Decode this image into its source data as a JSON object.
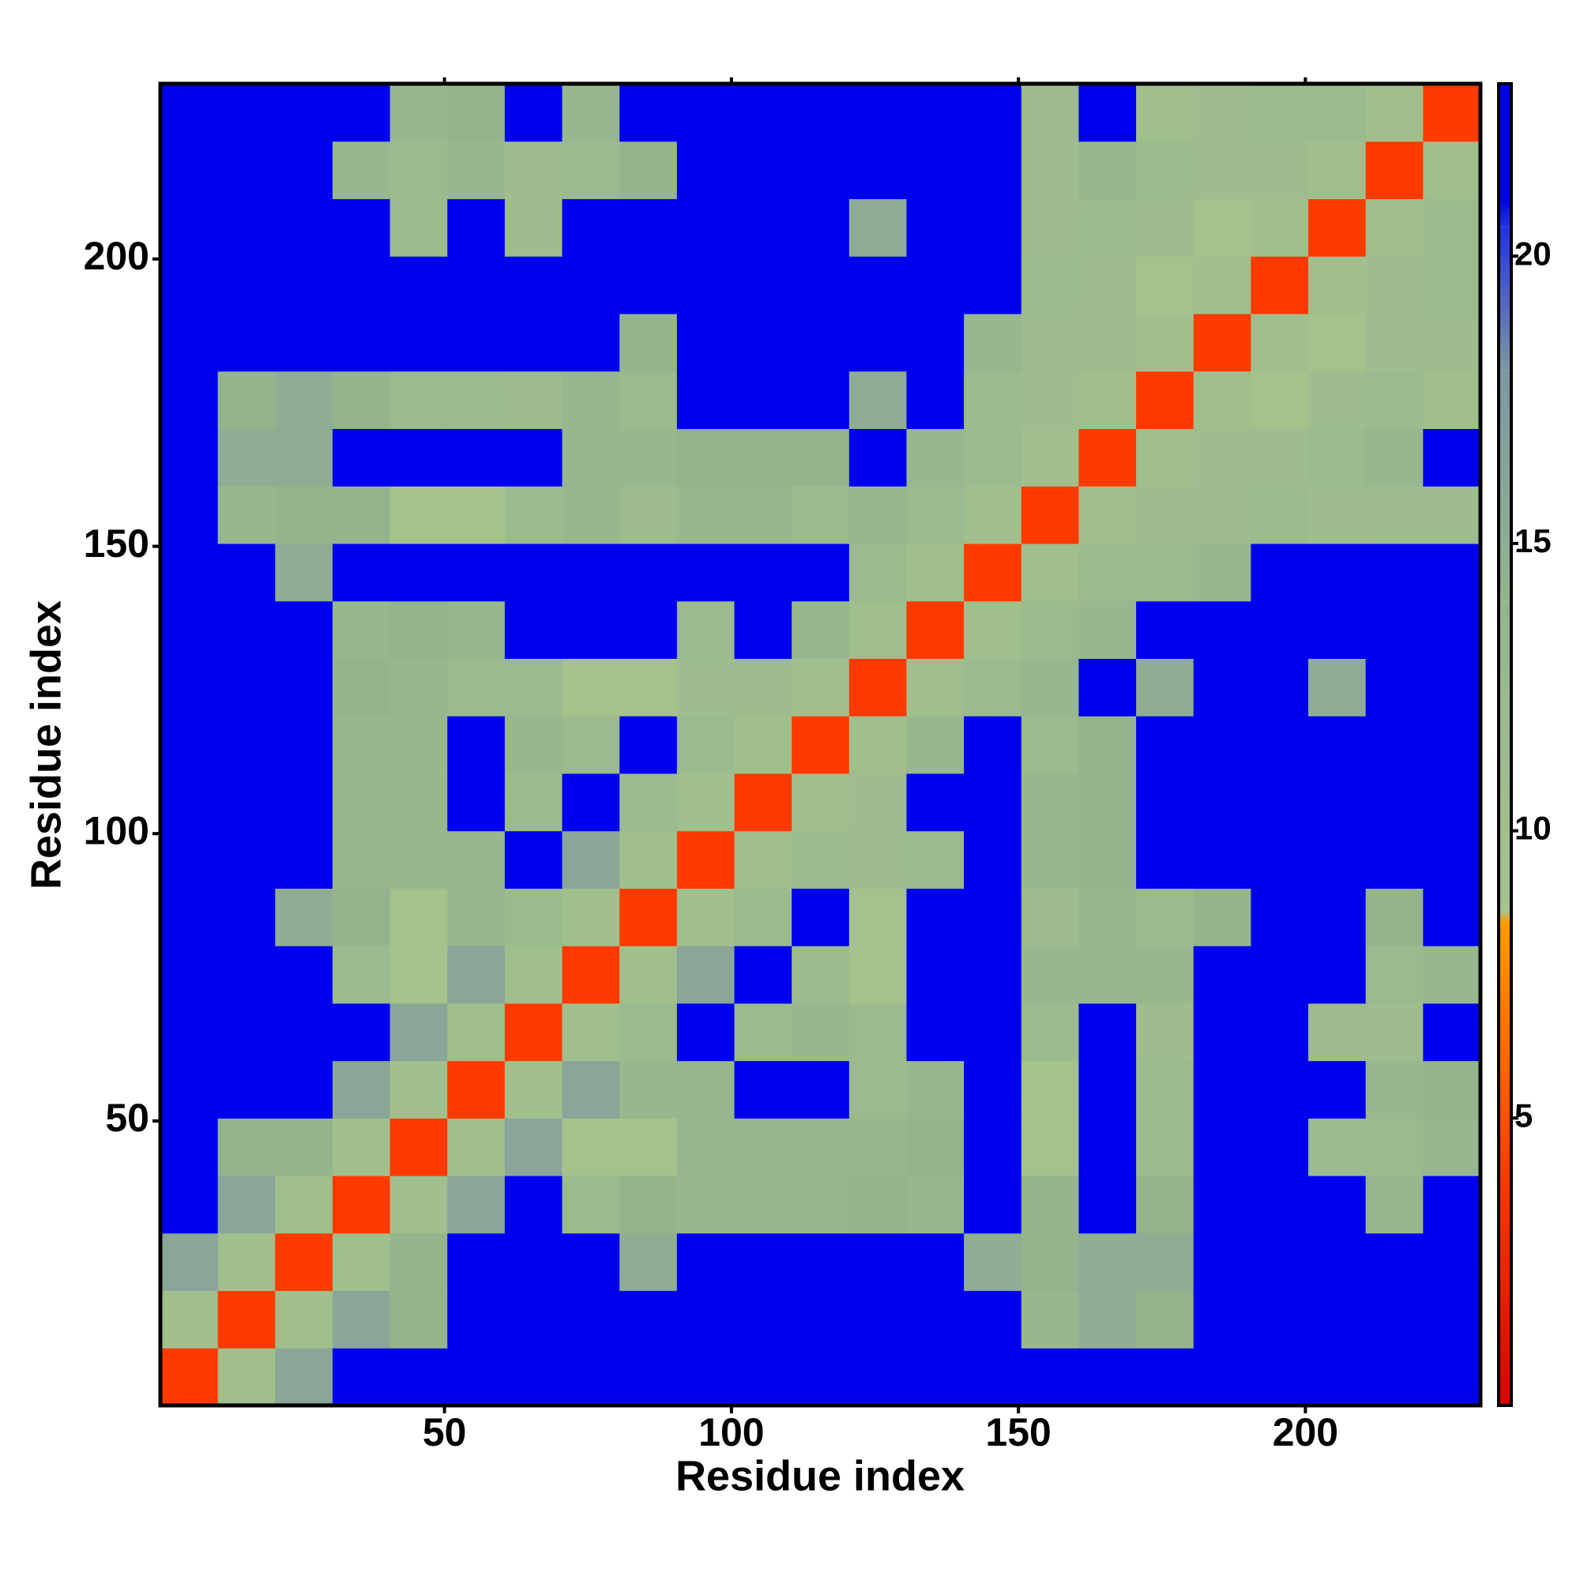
{
  "chart_data": {
    "type": "heatmap",
    "x_label": "Residue index",
    "y_label": "Residue index",
    "xlim": [
      0.5,
      230.5
    ],
    "ylim": [
      0.5,
      230.5
    ],
    "xticks": [
      50,
      100,
      150,
      200
    ],
    "yticks": [
      50,
      100,
      150,
      200
    ],
    "zlim": [
      0,
      23
    ],
    "zticks": [
      5,
      10,
      15,
      20
    ],
    "colorscale": [
      [
        0,
        "#dd0000"
      ],
      [
        4,
        "#ff3a00"
      ],
      [
        8.4,
        "#ff9a00"
      ],
      [
        8.6,
        "#a6c38c"
      ],
      [
        14,
        "#94b48e"
      ],
      [
        18,
        "#7d98a2"
      ],
      [
        20.5,
        "#2232e0"
      ],
      [
        21,
        "#0000f0"
      ],
      [
        23,
        "#0000f0"
      ]
    ],
    "x": [
      5.5,
      15.5,
      25.5,
      35.5,
      45.5,
      55.5,
      65.5,
      75.5,
      85.5,
      95.5,
      105.5,
      115.5,
      125.5,
      135.5,
      145.5,
      155.5,
      165.5,
      175.5,
      185.5,
      195.5,
      205.5,
      215.5,
      225.5
    ],
    "y": [
      5.5,
      15.5,
      25.5,
      35.5,
      45.5,
      55.5,
      65.5,
      75.5,
      85.5,
      95.5,
      105.5,
      115.5,
      125.5,
      135.5,
      145.5,
      155.5,
      165.5,
      175.5,
      185.5,
      195.5,
      205.5,
      215.5,
      225.5
    ],
    "z": [
      [
        4,
        10,
        16,
        21,
        21,
        21,
        21,
        21,
        21,
        21,
        21,
        21,
        21,
        21,
        21,
        21,
        21,
        21,
        21,
        21,
        21,
        21,
        21
      ],
      [
        10,
        4,
        10,
        16,
        14,
        21,
        21,
        21,
        21,
        21,
        21,
        21,
        21,
        21,
        21,
        13,
        15,
        14,
        21,
        21,
        21,
        21,
        21
      ],
      [
        16,
        10,
        4,
        10,
        14,
        21,
        21,
        21,
        15,
        21,
        21,
        21,
        21,
        21,
        15,
        14,
        15,
        15,
        21,
        21,
        21,
        21,
        21
      ],
      [
        21,
        16,
        10,
        4,
        10,
        16,
        21,
        12,
        14,
        13,
        13,
        13,
        14,
        13,
        21,
        14,
        21,
        14,
        21,
        21,
        21,
        13,
        21
      ],
      [
        21,
        14,
        14,
        10,
        4,
        10,
        16,
        9,
        9,
        13,
        13,
        13,
        13,
        14,
        21,
        9,
        21,
        12,
        21,
        21,
        12,
        12,
        13
      ],
      [
        21,
        21,
        21,
        16,
        10,
        4,
        10,
        16,
        13,
        13,
        21,
        21,
        12,
        13,
        21,
        9,
        21,
        12,
        21,
        21,
        21,
        13,
        14
      ],
      [
        21,
        21,
        21,
        21,
        16,
        10,
        4,
        10,
        12,
        21,
        12,
        13,
        12,
        21,
        21,
        12,
        21,
        11,
        21,
        21,
        11,
        11,
        21
      ],
      [
        21,
        21,
        21,
        12,
        9,
        16,
        10,
        4,
        10,
        16,
        21,
        12,
        9,
        21,
        21,
        13,
        13,
        13,
        21,
        21,
        21,
        12,
        13
      ],
      [
        21,
        21,
        15,
        14,
        9,
        13,
        12,
        10,
        4,
        10,
        12,
        21,
        9,
        21,
        21,
        11,
        13,
        12,
        14,
        21,
        21,
        14,
        21
      ],
      [
        21,
        21,
        21,
        13,
        13,
        13,
        21,
        16,
        10,
        4,
        10,
        12,
        11,
        12,
        21,
        13,
        14,
        21,
        21,
        21,
        21,
        21,
        21
      ],
      [
        21,
        21,
        21,
        13,
        13,
        21,
        12,
        21,
        12,
        10,
        4,
        10,
        11,
        21,
        21,
        13,
        14,
        21,
        21,
        21,
        21,
        21,
        21
      ],
      [
        21,
        21,
        21,
        13,
        13,
        21,
        13,
        12,
        21,
        12,
        10,
        4,
        10,
        13,
        21,
        12,
        14,
        21,
        21,
        21,
        21,
        21,
        21
      ],
      [
        21,
        21,
        21,
        14,
        13,
        12,
        12,
        9,
        9,
        11,
        11,
        10,
        4,
        10,
        12,
        13,
        21,
        15,
        21,
        21,
        15,
        21,
        21
      ],
      [
        21,
        21,
        21,
        13,
        14,
        13,
        21,
        21,
        21,
        12,
        21,
        13,
        10,
        4,
        10,
        12,
        13,
        21,
        21,
        21,
        21,
        21,
        21
      ],
      [
        21,
        21,
        15,
        21,
        21,
        21,
        21,
        21,
        21,
        21,
        21,
        21,
        12,
        10,
        4,
        10,
        12,
        12,
        13,
        21,
        21,
        21,
        21
      ],
      [
        21,
        13,
        14,
        14,
        9,
        9,
        12,
        13,
        11,
        13,
        13,
        12,
        13,
        12,
        10,
        4,
        10,
        11,
        11,
        12,
        11,
        11,
        11
      ],
      [
        21,
        15,
        15,
        21,
        21,
        21,
        21,
        13,
        13,
        14,
        14,
        14,
        21,
        13,
        12,
        10,
        4,
        10,
        11,
        11,
        12,
        13,
        21
      ],
      [
        21,
        14,
        15,
        14,
        12,
        12,
        11,
        13,
        12,
        21,
        21,
        21,
        15,
        21,
        12,
        11,
        10,
        4,
        10,
        9,
        11,
        12,
        10
      ],
      [
        21,
        21,
        21,
        21,
        21,
        21,
        21,
        21,
        14,
        21,
        21,
        21,
        21,
        21,
        13,
        11,
        11,
        10,
        4,
        10,
        9,
        11,
        11
      ],
      [
        21,
        21,
        21,
        21,
        21,
        21,
        21,
        21,
        21,
        21,
        21,
        21,
        21,
        21,
        21,
        12,
        11,
        9,
        10,
        4,
        10,
        11,
        12
      ],
      [
        21,
        21,
        21,
        21,
        12,
        21,
        11,
        21,
        21,
        21,
        21,
        21,
        15,
        21,
        21,
        11,
        12,
        11,
        9,
        10,
        4,
        10,
        12
      ],
      [
        21,
        21,
        21,
        13,
        12,
        13,
        11,
        12,
        14,
        21,
        21,
        21,
        21,
        21,
        21,
        11,
        13,
        12,
        11,
        11,
        10,
        4,
        10
      ],
      [
        21,
        21,
        21,
        21,
        13,
        14,
        21,
        13,
        21,
        21,
        21,
        21,
        21,
        21,
        21,
        11,
        21,
        10,
        11,
        12,
        12,
        10,
        4
      ]
    ]
  }
}
